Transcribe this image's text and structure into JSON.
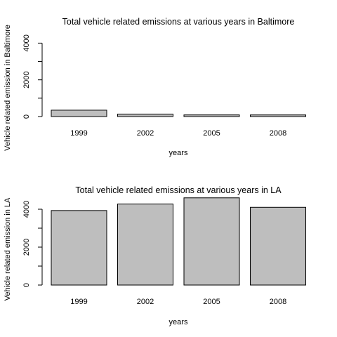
{
  "chart_data": [
    {
      "type": "bar",
      "title": "Total vehicle related emissions at various years in Baltimore",
      "xlabel": "years",
      "ylabel": "Vehicle related emission in Baltimore",
      "categories": [
        "1999",
        "2002",
        "2005",
        "2008"
      ],
      "values": [
        347,
        135,
        89,
        88
      ],
      "ylim": [
        0,
        4600
      ],
      "yticks": [
        0,
        2000,
        4000
      ],
      "grid": false
    },
    {
      "type": "bar",
      "title": "Total vehicle related emissions at various years in LA",
      "xlabel": "years",
      "ylabel": "Vehicle related emission in LA",
      "categories": [
        "1999",
        "2002",
        "2005",
        "2008"
      ],
      "values": [
        3931,
        4274,
        4601,
        4101
      ],
      "ylim": [
        0,
        4600
      ],
      "yticks": [
        0,
        2000,
        4000
      ],
      "grid": false
    }
  ]
}
